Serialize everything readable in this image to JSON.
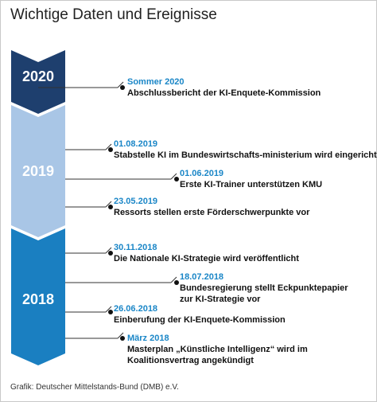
{
  "title": "Wichtige Daten und Ereignisse",
  "colors": {
    "y2020": "#1e3f6e",
    "y2019": "#a9c6e6",
    "y2018": "#1a7fc1",
    "date": "#1a86c7"
  },
  "years": [
    {
      "label": "2020"
    },
    {
      "label": "2019"
    },
    {
      "label": "2018"
    }
  ],
  "events": [
    {
      "date": "Sommer 2020",
      "lines": [
        "Abschlussbericht der KI-Enquete-Kommission"
      ]
    },
    {
      "date": "01.08.2019",
      "lines": [
        "Stabstelle KI im Bundeswirtschafts-ministerium wird eingerichtet"
      ]
    },
    {
      "date": "01.06.2019",
      "lines": [
        "Erste KI-Trainer unterstützen KMU"
      ]
    },
    {
      "date": "23.05.2019",
      "lines": [
        "Ressorts stellen erste Förderschwerpunkte vor"
      ]
    },
    {
      "date": "30.11.2018",
      "lines": [
        "Die Nationale  KI-Strategie wird veröffentlicht"
      ]
    },
    {
      "date": "18.07.2018",
      "lines": [
        "Bundesregierung stellt Eckpunktepapier",
        "zur KI-Strategie vor"
      ]
    },
    {
      "date": "26.06.2018",
      "lines": [
        "Einberufung der KI-Enquete-Kommission"
      ]
    },
    {
      "date": "März 2018",
      "lines": [
        "Masterplan „Künstliche Intelligenz“ wird im",
        "Koalitionsvertrag angekündigt"
      ]
    }
  ],
  "caption": "Grafik: Deutscher  Mittelstands-Bund  (DMB) e.V."
}
